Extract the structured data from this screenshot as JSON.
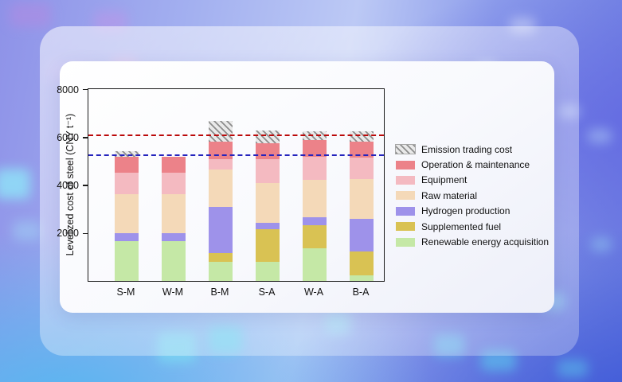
{
  "chart_data": {
    "type": "bar",
    "subtype": "stacked",
    "title": "",
    "xlabel": "",
    "ylabel": "Levelized cost of steel (CNY t⁻¹)",
    "ylim": [
      0,
      8000
    ],
    "yticks": [
      2000,
      4000,
      6000,
      8000
    ],
    "grid": false,
    "legend_position": "right-outside",
    "categories": [
      "S-M",
      "W-M",
      "B-M",
      "S-A",
      "W-A",
      "B-A"
    ],
    "series": [
      {
        "name": "Emission trading cost",
        "pattern": "diagonal-hatch",
        "color": "#8d8d8d",
        "background": "#e9e9e9",
        "values": [
          220,
          0,
          880,
          530,
          385,
          460
        ]
      },
      {
        "name": "Operation & maintenance",
        "color": "#ec8289",
        "values": [
          660,
          660,
          715,
          660,
          680,
          660
        ]
      },
      {
        "name": "Equipment",
        "color": "#f4bac1",
        "values": [
          900,
          900,
          440,
          990,
          965,
          880
        ]
      },
      {
        "name": "Raw material",
        "color": "#f4d9b8",
        "values": [
          1630,
          1630,
          1540,
          1650,
          1560,
          1650
        ]
      },
      {
        "name": "Hydrogen production",
        "color": "#9e92ea",
        "values": [
          350,
          350,
          1925,
          270,
          320,
          1375
        ]
      },
      {
        "name": "Supplemented fuel",
        "color": "#d9c253",
        "values": [
          0,
          0,
          385,
          1380,
          990,
          1010
        ]
      },
      {
        "name": "Renewable energy acquisition",
        "color": "#c5e8a6",
        "values": [
          1650,
          1650,
          790,
          790,
          1345,
          220
        ]
      }
    ],
    "totals": [
      5410,
      5190,
      6675,
      6270,
      6245,
      6255
    ],
    "reference_lines": [
      {
        "value": 6080,
        "color": "#bb0a0a",
        "style": "dashed"
      },
      {
        "value": 5240,
        "color": "#2424bd",
        "style": "dashed"
      }
    ]
  }
}
